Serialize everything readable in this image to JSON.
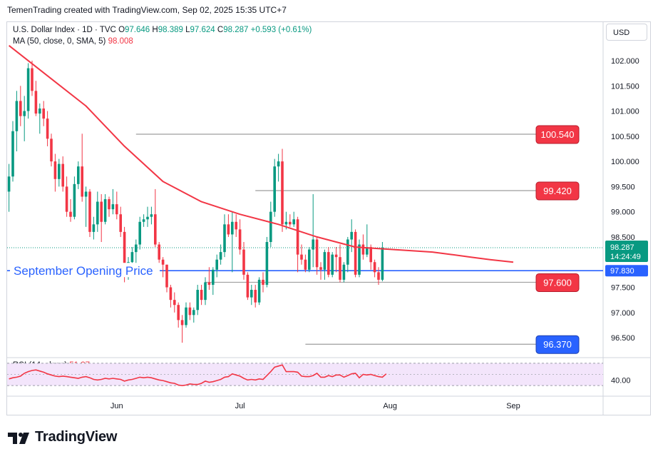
{
  "header": {
    "text": "TemenTrading created with TradingView.com, Sep 02, 2025 15:35 UTC+7"
  },
  "legend": {
    "symbol": "U.S. Dollar Index · 1D · TVC",
    "o_label": "O",
    "o": "97.646",
    "h_label": "H",
    "h": "98.389",
    "l_label": "L",
    "l": "97.624",
    "c_label": "C",
    "c": "98.287",
    "change": "+0.593 (+0.61%)",
    "ma_label": "MA (50, close, 0, SMA, 5)",
    "ma_value": "98.008"
  },
  "currency": "USD",
  "rsi_legend": {
    "label": "RSI (14, close)",
    "value": "51.37"
  },
  "logo_text": "TradingView",
  "chart_data": [
    {
      "type": "candlestick",
      "title": "U.S. Dollar Index · 1D · TVC",
      "y_range": [
        96.0,
        102.6
      ],
      "y_ticks": [
        {
          "value": 102.0,
          "label": "102.000"
        },
        {
          "value": 101.5,
          "label": "101.500"
        },
        {
          "value": 101.0,
          "label": "101.000"
        },
        {
          "value": 100.5,
          "label": "100.500"
        },
        {
          "value": 100.0,
          "label": "100.000"
        },
        {
          "value": 99.5,
          "label": "99.500"
        },
        {
          "value": 99.0,
          "label": "99.000"
        },
        {
          "value": 98.5,
          "label": "98.500"
        },
        {
          "value": 97.5,
          "label": "97.500"
        },
        {
          "value": 97.0,
          "label": "97.000"
        },
        {
          "value": 96.5,
          "label": "96.500"
        }
      ],
      "x_labels": [
        {
          "label": "Jun",
          "bar": 28
        },
        {
          "label": "Jul",
          "bar": 60
        },
        {
          "label": "Aug",
          "bar": 99
        },
        {
          "label": "Sep",
          "bar": 131
        }
      ],
      "candles": [
        {
          "o": 99.4,
          "h": 99.95,
          "l": 99.0,
          "c": 99.7
        },
        {
          "o": 99.7,
          "h": 100.8,
          "l": 99.6,
          "c": 100.6
        },
        {
          "o": 100.6,
          "h": 101.4,
          "l": 100.2,
          "c": 101.2
        },
        {
          "o": 101.2,
          "h": 101.5,
          "l": 100.7,
          "c": 100.9
        },
        {
          "o": 100.9,
          "h": 101.3,
          "l": 100.4,
          "c": 101.0
        },
        {
          "o": 101.0,
          "h": 101.95,
          "l": 100.85,
          "c": 101.85
        },
        {
          "o": 101.85,
          "h": 102.0,
          "l": 101.3,
          "c": 101.4
        },
        {
          "o": 101.4,
          "h": 101.6,
          "l": 100.9,
          "c": 100.95
        },
        {
          "o": 100.95,
          "h": 101.15,
          "l": 100.55,
          "c": 101.05
        },
        {
          "o": 101.05,
          "h": 101.2,
          "l": 100.7,
          "c": 100.85
        },
        {
          "o": 100.85,
          "h": 101.0,
          "l": 100.3,
          "c": 100.45
        },
        {
          "o": 100.45,
          "h": 100.55,
          "l": 99.9,
          "c": 100.0
        },
        {
          "o": 100.0,
          "h": 100.15,
          "l": 99.4,
          "c": 99.65
        },
        {
          "o": 99.65,
          "h": 100.05,
          "l": 99.5,
          "c": 99.95
        },
        {
          "o": 99.95,
          "h": 100.1,
          "l": 99.4,
          "c": 99.5
        },
        {
          "o": 99.5,
          "h": 99.7,
          "l": 98.9,
          "c": 99.0
        },
        {
          "o": 99.0,
          "h": 99.25,
          "l": 98.8,
          "c": 98.9
        },
        {
          "o": 98.9,
          "h": 99.7,
          "l": 98.85,
          "c": 99.55
        },
        {
          "o": 99.55,
          "h": 100.0,
          "l": 99.45,
          "c": 99.9
        },
        {
          "o": 99.9,
          "h": 100.55,
          "l": 99.2,
          "c": 99.3
        },
        {
          "o": 99.3,
          "h": 99.5,
          "l": 98.7,
          "c": 99.4
        },
        {
          "o": 99.4,
          "h": 99.45,
          "l": 98.5,
          "c": 98.6
        },
        {
          "o": 98.6,
          "h": 98.9,
          "l": 98.45,
          "c": 98.75
        },
        {
          "o": 98.75,
          "h": 99.4,
          "l": 98.6,
          "c": 99.2
        },
        {
          "o": 99.2,
          "h": 99.35,
          "l": 98.4,
          "c": 98.8
        },
        {
          "o": 98.8,
          "h": 99.35,
          "l": 98.75,
          "c": 99.25
        },
        {
          "o": 99.25,
          "h": 99.3,
          "l": 98.9,
          "c": 99.05
        },
        {
          "o": 99.05,
          "h": 99.45,
          "l": 98.95,
          "c": 99.15
        },
        {
          "o": 99.15,
          "h": 99.4,
          "l": 98.85,
          "c": 98.95
        },
        {
          "o": 98.95,
          "h": 99.1,
          "l": 98.5,
          "c": 98.6
        },
        {
          "o": 98.6,
          "h": 98.7,
          "l": 97.6,
          "c": 97.75
        },
        {
          "o": 97.75,
          "h": 98.1,
          "l": 97.65,
          "c": 98.0
        },
        {
          "o": 98.0,
          "h": 98.3,
          "l": 97.8,
          "c": 98.2
        },
        {
          "o": 98.2,
          "h": 98.45,
          "l": 97.95,
          "c": 98.35
        },
        {
          "o": 98.35,
          "h": 98.9,
          "l": 98.25,
          "c": 98.8
        },
        {
          "o": 98.8,
          "h": 98.95,
          "l": 98.7,
          "c": 98.85
        },
        {
          "o": 98.85,
          "h": 99.1,
          "l": 98.7,
          "c": 98.9
        },
        {
          "o": 98.9,
          "h": 99.1,
          "l": 98.75,
          "c": 98.95
        },
        {
          "o": 98.95,
          "h": 99.45,
          "l": 98.3,
          "c": 98.35
        },
        {
          "o": 98.35,
          "h": 98.4,
          "l": 97.85,
          "c": 98.05
        },
        {
          "o": 98.05,
          "h": 98.1,
          "l": 97.7,
          "c": 97.95
        },
        {
          "o": 97.95,
          "h": 97.95,
          "l": 97.4,
          "c": 97.5
        },
        {
          "o": 97.5,
          "h": 97.55,
          "l": 97.1,
          "c": 97.25
        },
        {
          "o": 97.25,
          "h": 97.4,
          "l": 97.0,
          "c": 97.15
        },
        {
          "o": 97.15,
          "h": 97.2,
          "l": 96.7,
          "c": 96.85
        },
        {
          "o": 96.85,
          "h": 96.95,
          "l": 96.4,
          "c": 96.75
        },
        {
          "o": 96.75,
          "h": 97.2,
          "l": 96.7,
          "c": 97.1
        },
        {
          "o": 97.1,
          "h": 97.2,
          "l": 96.85,
          "c": 96.95
        },
        {
          "o": 96.95,
          "h": 97.1,
          "l": 96.8,
          "c": 97.05
        },
        {
          "o": 97.05,
          "h": 97.55,
          "l": 96.95,
          "c": 97.45
        },
        {
          "o": 97.45,
          "h": 97.55,
          "l": 97.15,
          "c": 97.25
        },
        {
          "o": 97.25,
          "h": 97.7,
          "l": 97.15,
          "c": 97.6
        },
        {
          "o": 97.6,
          "h": 97.9,
          "l": 97.45,
          "c": 97.55
        },
        {
          "o": 97.55,
          "h": 97.9,
          "l": 97.35,
          "c": 97.85
        },
        {
          "o": 97.85,
          "h": 98.15,
          "l": 97.7,
          "c": 98.05
        },
        {
          "o": 98.05,
          "h": 98.35,
          "l": 97.95,
          "c": 98.2
        },
        {
          "o": 98.2,
          "h": 98.95,
          "l": 98.1,
          "c": 98.75
        },
        {
          "o": 98.75,
          "h": 98.95,
          "l": 98.5,
          "c": 98.55
        },
        {
          "o": 98.55,
          "h": 99.0,
          "l": 97.8,
          "c": 98.8
        },
        {
          "o": 98.8,
          "h": 98.95,
          "l": 98.5,
          "c": 98.65
        },
        {
          "o": 98.65,
          "h": 98.85,
          "l": 98.15,
          "c": 98.25
        },
        {
          "o": 98.25,
          "h": 98.4,
          "l": 97.65,
          "c": 97.75
        },
        {
          "o": 97.75,
          "h": 97.8,
          "l": 97.25,
          "c": 97.3
        },
        {
          "o": 97.3,
          "h": 97.55,
          "l": 97.15,
          "c": 97.45
        },
        {
          "o": 97.45,
          "h": 97.55,
          "l": 97.1,
          "c": 97.2
        },
        {
          "o": 97.2,
          "h": 97.7,
          "l": 97.15,
          "c": 97.65
        },
        {
          "o": 97.65,
          "h": 97.8,
          "l": 97.4,
          "c": 97.55
        },
        {
          "o": 97.55,
          "h": 98.5,
          "l": 97.5,
          "c": 98.4
        },
        {
          "o": 98.4,
          "h": 99.2,
          "l": 98.3,
          "c": 99.0
        },
        {
          "o": 99.0,
          "h": 100.05,
          "l": 98.9,
          "c": 99.9
        },
        {
          "o": 99.9,
          "h": 100.15,
          "l": 99.6,
          "c": 100.0
        },
        {
          "o": 100.0,
          "h": 100.25,
          "l": 98.6,
          "c": 98.75
        },
        {
          "o": 98.75,
          "h": 99.0,
          "l": 98.65,
          "c": 98.8
        },
        {
          "o": 98.8,
          "h": 98.95,
          "l": 98.7,
          "c": 98.75
        },
        {
          "o": 98.75,
          "h": 99.0,
          "l": 98.7,
          "c": 98.85
        },
        {
          "o": 98.85,
          "h": 98.9,
          "l": 97.8,
          "c": 98.15
        },
        {
          "o": 98.15,
          "h": 98.35,
          "l": 97.95,
          "c": 98.05
        },
        {
          "o": 98.05,
          "h": 98.15,
          "l": 97.8,
          "c": 97.85
        },
        {
          "o": 97.85,
          "h": 98.3,
          "l": 97.8,
          "c": 98.25
        },
        {
          "o": 98.25,
          "h": 99.35,
          "l": 97.9,
          "c": 98.45
        },
        {
          "o": 98.45,
          "h": 98.5,
          "l": 97.75,
          "c": 97.9
        },
        {
          "o": 97.9,
          "h": 98.0,
          "l": 97.65,
          "c": 97.85
        },
        {
          "o": 97.85,
          "h": 98.25,
          "l": 97.65,
          "c": 98.2
        },
        {
          "o": 98.2,
          "h": 98.3,
          "l": 97.7,
          "c": 97.75
        },
        {
          "o": 97.75,
          "h": 98.2,
          "l": 97.7,
          "c": 98.15
        },
        {
          "o": 98.15,
          "h": 98.3,
          "l": 97.8,
          "c": 98.1
        },
        {
          "o": 98.1,
          "h": 98.35,
          "l": 97.6,
          "c": 97.65
        },
        {
          "o": 97.65,
          "h": 98.0,
          "l": 97.6,
          "c": 97.95
        },
        {
          "o": 97.95,
          "h": 98.5,
          "l": 97.8,
          "c": 98.45
        },
        {
          "o": 98.45,
          "h": 98.85,
          "l": 98.2,
          "c": 98.6
        },
        {
          "o": 98.6,
          "h": 98.65,
          "l": 97.7,
          "c": 97.75
        },
        {
          "o": 97.75,
          "h": 98.45,
          "l": 97.7,
          "c": 98.35
        },
        {
          "o": 98.35,
          "h": 98.55,
          "l": 98.05,
          "c": 98.15
        },
        {
          "o": 98.15,
          "h": 98.75,
          "l": 98.1,
          "c": 98.3
        },
        {
          "o": 98.3,
          "h": 98.35,
          "l": 97.85,
          "c": 98.0
        },
        {
          "o": 98.0,
          "h": 98.05,
          "l": 97.7,
          "c": 97.8
        },
        {
          "o": 97.8,
          "h": 97.9,
          "l": 97.55,
          "c": 97.65
        },
        {
          "o": 97.65,
          "h": 98.4,
          "l": 97.62,
          "c": 98.29
        }
      ],
      "moving_average": {
        "label": "MA (50, close, 0, SMA, 5)",
        "color": "#f23645",
        "points": [
          [
            0,
            102.3
          ],
          [
            10,
            101.7
          ],
          [
            20,
            101.1
          ],
          [
            30,
            100.3
          ],
          [
            40,
            99.6
          ],
          [
            50,
            99.2
          ],
          [
            60,
            98.95
          ],
          [
            70,
            98.75
          ],
          [
            80,
            98.5
          ],
          [
            90,
            98.3
          ],
          [
            100,
            98.25
          ],
          [
            110,
            98.2
          ],
          [
            115,
            98.15
          ],
          [
            120,
            98.1
          ],
          [
            125,
            98.05
          ],
          [
            131,
            98.0
          ]
        ]
      },
      "levels": [
        {
          "value": 100.54,
          "label": "100.540",
          "style": "red",
          "from_bar": 33
        },
        {
          "value": 99.42,
          "label": "99.420",
          "style": "red",
          "from_bar": 64
        },
        {
          "value": 97.6,
          "label": "97.600",
          "style": "red",
          "from_bar": 51
        },
        {
          "value": 96.37,
          "label": "96.370",
          "style": "blue",
          "from_bar": 77
        }
      ],
      "september_line": {
        "value": 97.83,
        "label": "September Opening Price",
        "price_label": "97.830",
        "color": "#2962ff"
      },
      "last_price": {
        "value": 98.287,
        "label": "98.287",
        "countdown": "14:24:49",
        "color": "#089981"
      },
      "colors": {
        "up": "#089981",
        "down": "#f23645"
      }
    },
    {
      "type": "line",
      "title": "RSI (14, close)",
      "y_range": [
        20,
        80
      ],
      "y_ticks": [
        {
          "value": 40,
          "label": "40.00"
        }
      ],
      "band": [
        30,
        70
      ],
      "values": [
        42,
        44,
        45,
        47,
        52,
        55,
        57,
        58,
        56,
        54,
        51,
        49,
        47,
        46,
        47,
        46,
        45,
        44,
        43,
        45,
        46,
        44,
        41,
        40,
        41,
        43,
        42,
        43,
        42,
        41,
        38,
        40,
        41,
        43,
        45,
        44,
        45,
        44,
        42,
        40,
        39,
        37,
        35,
        34,
        31,
        30,
        31,
        33,
        32,
        32,
        34,
        38,
        36,
        37,
        39,
        41,
        45,
        46,
        51,
        49,
        47,
        43,
        40,
        41,
        40,
        42,
        41,
        48,
        55,
        63,
        65,
        67,
        55,
        55,
        55,
        54,
        47,
        46,
        46,
        48,
        52,
        45,
        45,
        48,
        46,
        49,
        49,
        45,
        48,
        51,
        52,
        44,
        50,
        49,
        50,
        48,
        46,
        45,
        51
      ]
    }
  ]
}
